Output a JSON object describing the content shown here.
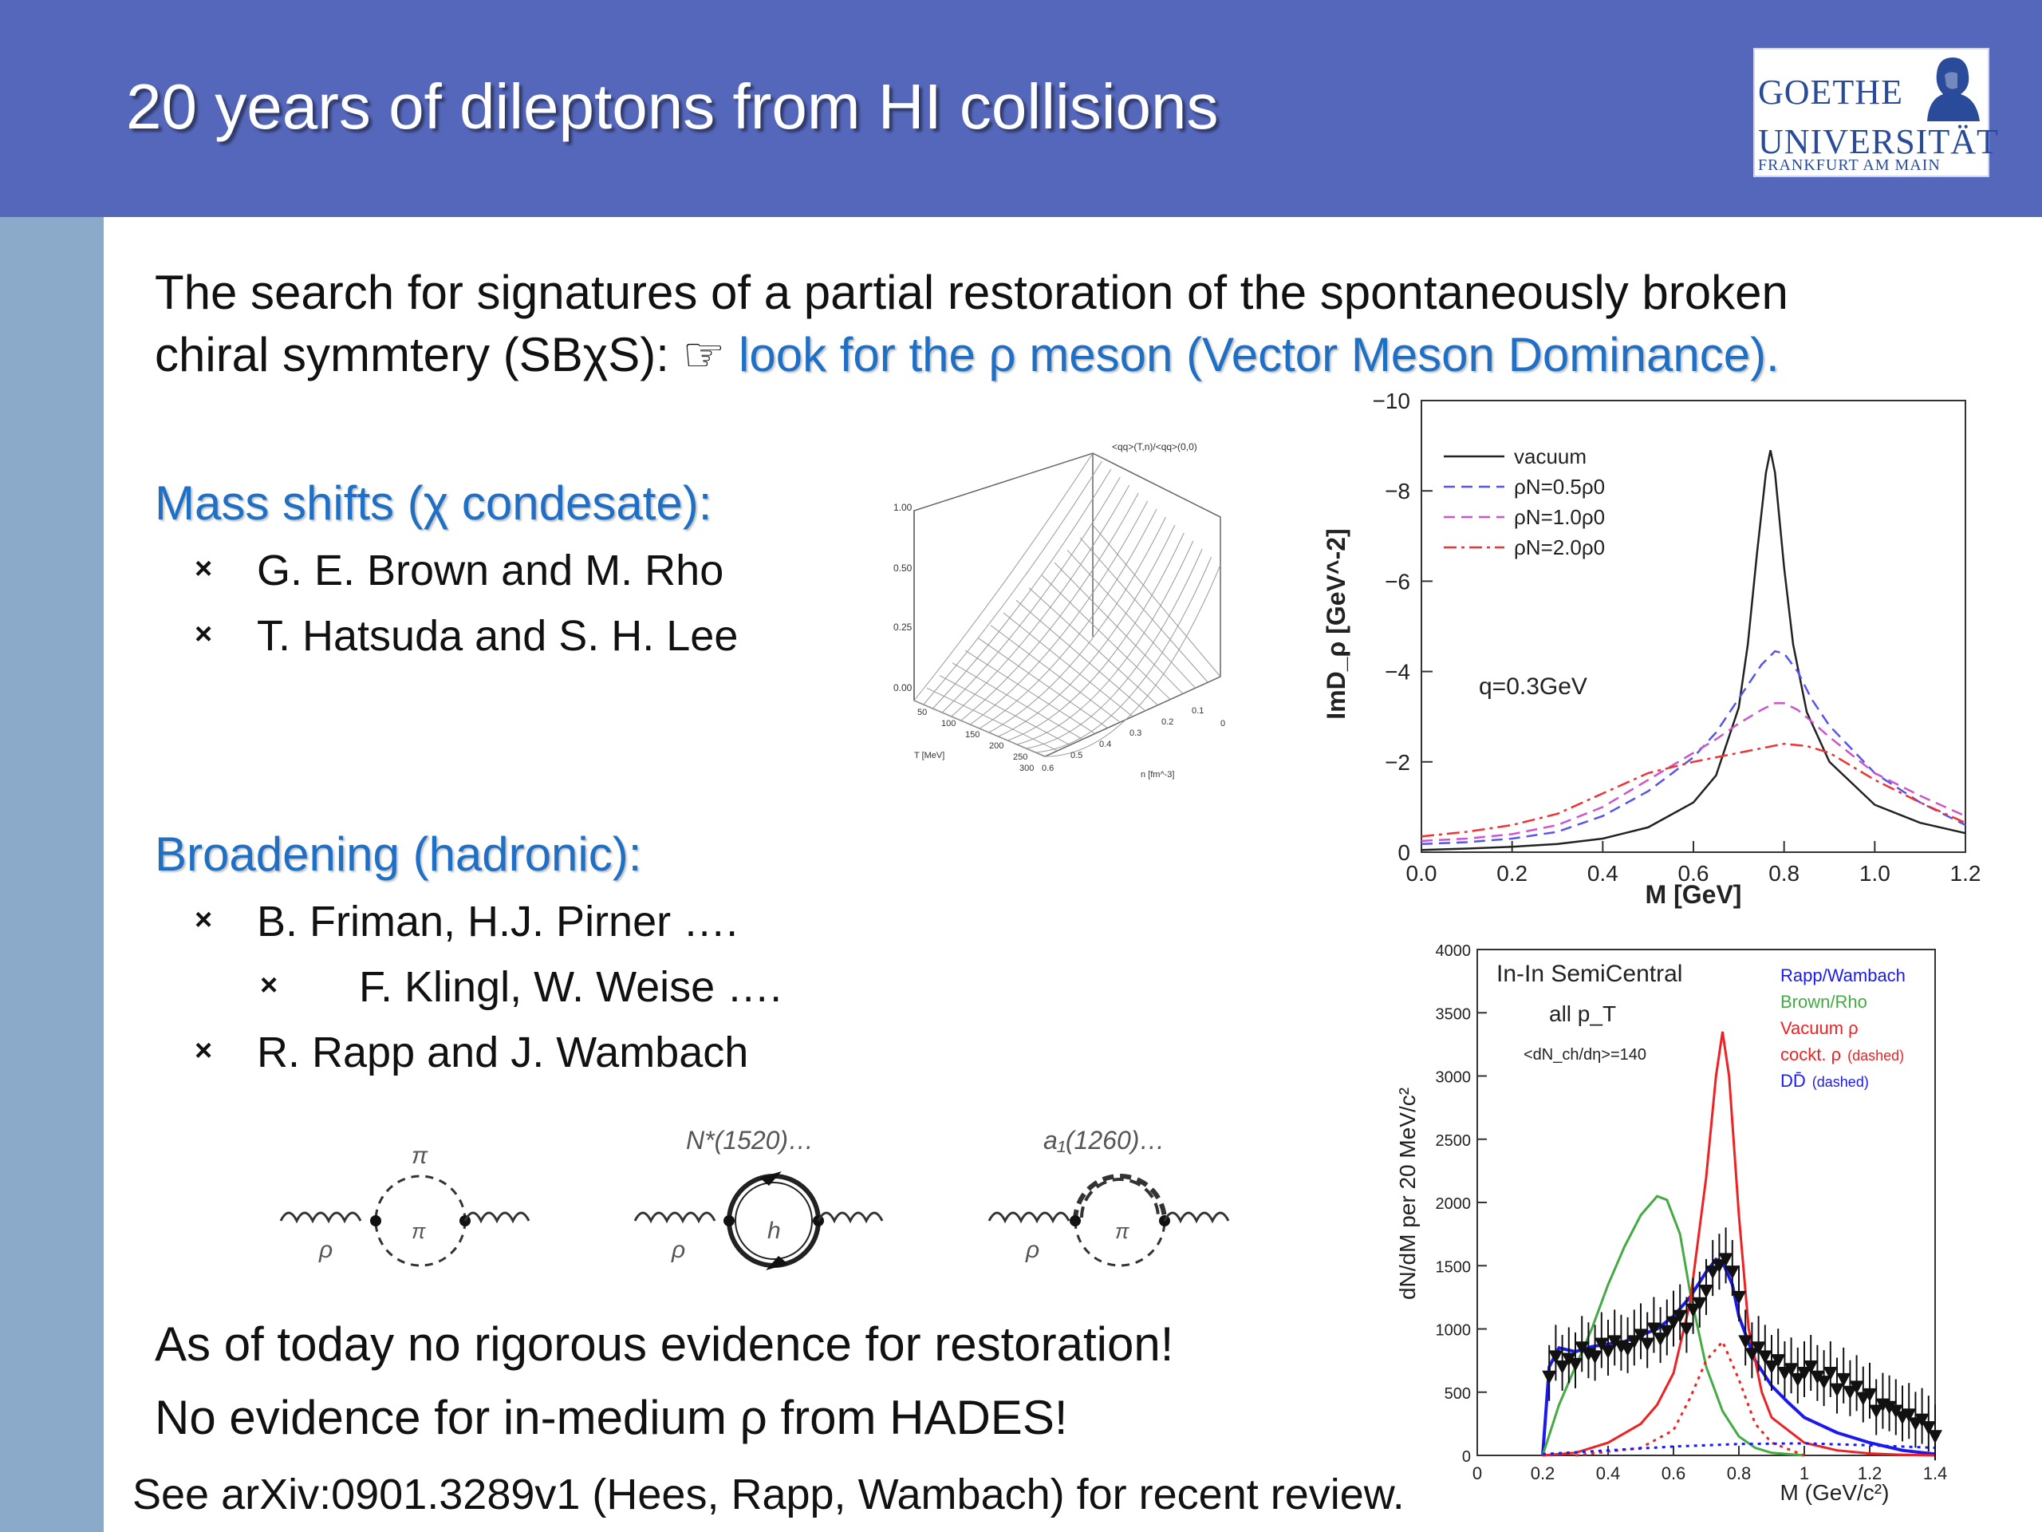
{
  "slide": {
    "title": "20 years of dileptons from HI collisions",
    "logo": {
      "line1": "GOETHE",
      "line2": "UNIVERSITÄT",
      "line3": "FRANKFURT AM MAIN"
    },
    "intro_line1": "The search for signatures of a partial restoration of the spontaneously broken",
    "intro_line2_prefix": "chiral symmtery (SBχS): ☞",
    "intro_line2_highlight": "look for the ρ meson (Vector Meson Dominance).",
    "mass_shifts_heading": "Mass shifts (χ condesate):",
    "mass_shifts_items": [
      "G. E. Brown and M. Rho",
      "T. Hatsuda and S. H. Lee"
    ],
    "broadening_heading": "Broadening (hadronic):",
    "broadening_items": [
      "B. Friman, H.J. Pirner  ….",
      "F. Klingl, W. Weise ….",
      "R. Rapp and J. Wambach"
    ],
    "bullet_symbol": "×",
    "conclusion1": "As of today no rigorous evidence for restoration!",
    "conclusion2": "No evidence for in-medium ρ from HADES!",
    "footer": "See  arXiv:0901.3289v1 (Hees, Rapp, Wambach) for recent review.",
    "feynman_labels": {
      "d1_top": "π",
      "d1_bottom": "π",
      "d1_rho": "ρ",
      "d2_top": "N*(1520)…",
      "d2_inner": "h",
      "d2_rho": "ρ",
      "d3_top": "a₁(1260)…",
      "d3_bottom": "π",
      "d3_rho": "ρ"
    },
    "surface_plot": {
      "title": "<qq>(T,n)/<qq>(0,0)",
      "z_ticks": [
        "1.00",
        "0.50",
        "0.25",
        "0.00"
      ],
      "t_ticks": [
        "50",
        "100",
        "150",
        "200",
        "250",
        "300"
      ],
      "t_label": "T [MeV]",
      "n_ticks": [
        "0.6",
        "0.5",
        "0.4",
        "0.3",
        "0.2",
        "0.1",
        "0"
      ],
      "n_label": "n [fm^-3]"
    }
  },
  "chart_data": [
    {
      "type": "line",
      "ylabel": "ImD_ρ [GeV^-2]",
      "xlabel": "M [GeV]",
      "xlim": [
        0.0,
        1.2
      ],
      "ylim": [
        0,
        -10
      ],
      "x_ticks": [
        "0.0",
        "0.2",
        "0.4",
        "0.6",
        "0.8",
        "1.0",
        "1.2"
      ],
      "y_ticks": [
        "0",
        "−2",
        "−4",
        "−6",
        "−8",
        "−10"
      ],
      "annotation": "q=0.3GeV",
      "legend_position": "top-left",
      "series": [
        {
          "name": "vacuum",
          "color": "#222222",
          "dash": "solid",
          "x": [
            0.0,
            0.1,
            0.2,
            0.3,
            0.4,
            0.5,
            0.6,
            0.65,
            0.7,
            0.72,
            0.74,
            0.76,
            0.77,
            0.78,
            0.8,
            0.82,
            0.85,
            0.9,
            1.0,
            1.1,
            1.2
          ],
          "y": [
            -0.05,
            -0.08,
            -0.12,
            -0.18,
            -0.3,
            -0.55,
            -1.1,
            -1.7,
            -3.2,
            -4.6,
            -6.6,
            -8.4,
            -8.9,
            -8.4,
            -6.3,
            -4.6,
            -3.1,
            -2.0,
            -1.05,
            -0.65,
            -0.42
          ]
        },
        {
          "name": "ρN=0.5ρ0",
          "color": "#5555ee",
          "dash": "dashed",
          "x": [
            0.0,
            0.1,
            0.2,
            0.3,
            0.4,
            0.5,
            0.6,
            0.65,
            0.7,
            0.75,
            0.78,
            0.8,
            0.83,
            0.86,
            0.9,
            1.0,
            1.1,
            1.2
          ],
          "y": [
            -0.18,
            -0.22,
            -0.3,
            -0.45,
            -0.8,
            -1.35,
            -2.1,
            -2.65,
            -3.4,
            -4.15,
            -4.45,
            -4.4,
            -4.0,
            -3.4,
            -2.8,
            -1.75,
            -1.1,
            -0.6
          ]
        },
        {
          "name": "ρN=1.0ρ0",
          "color": "#cc55cc",
          "dash": "dashed",
          "x": [
            0.0,
            0.1,
            0.2,
            0.3,
            0.4,
            0.5,
            0.6,
            0.65,
            0.7,
            0.75,
            0.78,
            0.8,
            0.83,
            0.86,
            0.9,
            1.0,
            1.1,
            1.2
          ],
          "y": [
            -0.25,
            -0.3,
            -0.4,
            -0.6,
            -1.0,
            -1.6,
            -2.2,
            -2.5,
            -2.85,
            -3.15,
            -3.3,
            -3.3,
            -3.15,
            -2.9,
            -2.55,
            -1.75,
            -1.25,
            -0.8
          ]
        },
        {
          "name": "ρN=2.0ρ0",
          "color": "#ee3333",
          "dash": "dashdot",
          "x": [
            0.0,
            0.1,
            0.2,
            0.3,
            0.4,
            0.5,
            0.6,
            0.7,
            0.75,
            0.8,
            0.85,
            0.9,
            1.0,
            1.1,
            1.2
          ],
          "y": [
            -0.35,
            -0.45,
            -0.6,
            -0.85,
            -1.3,
            -1.75,
            -2.0,
            -2.2,
            -2.3,
            -2.4,
            -2.35,
            -2.2,
            -1.6,
            -1.1,
            -0.65
          ]
        }
      ]
    },
    {
      "type": "line",
      "ylabel": "dN/dM per 20 MeV/c²",
      "xlabel": "M (GeV/c²)",
      "xlim": [
        0,
        1.4
      ],
      "ylim": [
        0,
        4000
      ],
      "x_ticks": [
        "0",
        "0.2",
        "0.4",
        "0.6",
        "0.8",
        "1",
        "1.2",
        "1.4"
      ],
      "y_ticks": [
        "0",
        "500",
        "1000",
        "1500",
        "2000",
        "2500",
        "3000",
        "3500",
        "4000"
      ],
      "annotations": [
        "In-In SemiCentral",
        "all p_T",
        "<dN_ch/dη>=140"
      ],
      "legend_position": "top-right",
      "legend": [
        {
          "name": "Rapp/Wambach",
          "color": "#1a1aee"
        },
        {
          "name": "Brown/Rho",
          "color": "#44aa44"
        },
        {
          "name": "Vacuum ρ",
          "color": "#ee2222"
        },
        {
          "name": "cockt. ρ",
          "suffix": "(dashed)",
          "color": "#ee2222"
        },
        {
          "name": "DD̄",
          "suffix": "(dashed)",
          "color": "#1a1aee"
        }
      ],
      "series": [
        {
          "name": "Rapp/Wambach",
          "color": "#1a1aee",
          "dash": "solid",
          "x": [
            0.2,
            0.22,
            0.25,
            0.3,
            0.35,
            0.4,
            0.45,
            0.5,
            0.55,
            0.6,
            0.65,
            0.7,
            0.73,
            0.75,
            0.78,
            0.8,
            0.85,
            0.9,
            0.95,
            1.0,
            1.1,
            1.2,
            1.3,
            1.4
          ],
          "y": [
            0,
            700,
            850,
            820,
            860,
            880,
            900,
            950,
            1000,
            1100,
            1250,
            1450,
            1550,
            1530,
            1350,
            1100,
            750,
            550,
            420,
            300,
            180,
            100,
            40,
            10
          ]
        },
        {
          "name": "Brown/Rho",
          "color": "#44aa44",
          "dash": "solid",
          "x": [
            0.2,
            0.25,
            0.3,
            0.35,
            0.4,
            0.45,
            0.5,
            0.55,
            0.58,
            0.62,
            0.65,
            0.7,
            0.75,
            0.8,
            0.85,
            0.9,
            1.0
          ],
          "y": [
            0,
            400,
            700,
            1000,
            1350,
            1650,
            1900,
            2050,
            2020,
            1750,
            1300,
            700,
            350,
            150,
            60,
            20,
            0
          ]
        },
        {
          "name": "Vacuum ρ",
          "color": "#ee2222",
          "dash": "solid",
          "x": [
            0.2,
            0.3,
            0.4,
            0.5,
            0.55,
            0.6,
            0.65,
            0.7,
            0.73,
            0.75,
            0.77,
            0.8,
            0.83,
            0.87,
            0.9,
            1.0,
            1.1,
            1.2,
            1.3,
            1.4
          ],
          "y": [
            0,
            20,
            100,
            250,
            400,
            650,
            1200,
            2200,
            3000,
            3350,
            3000,
            1900,
            1000,
            500,
            300,
            100,
            40,
            15,
            5,
            0
          ]
        },
        {
          "name": "cockt. ρ",
          "color": "#ee2222",
          "dash": "dotted",
          "x": [
            0.3,
            0.5,
            0.6,
            0.65,
            0.7,
            0.75,
            0.8,
            0.85,
            0.9,
            1.0
          ],
          "y": [
            0,
            60,
            200,
            450,
            750,
            900,
            600,
            250,
            100,
            0
          ]
        },
        {
          "name": "DD̄",
          "color": "#1a1aee",
          "dash": "dotted",
          "x": [
            0.2,
            0.4,
            0.6,
            0.8,
            1.0,
            1.2,
            1.4
          ],
          "y": [
            10,
            40,
            70,
            90,
            95,
            80,
            60
          ]
        },
        {
          "name": "data",
          "color": "#111111",
          "dash": "none",
          "marker": "triangle-down",
          "x": [
            0.22,
            0.24,
            0.26,
            0.28,
            0.3,
            0.32,
            0.34,
            0.36,
            0.38,
            0.4,
            0.42,
            0.44,
            0.46,
            0.48,
            0.5,
            0.52,
            0.54,
            0.56,
            0.58,
            0.6,
            0.62,
            0.64,
            0.66,
            0.68,
            0.7,
            0.72,
            0.74,
            0.76,
            0.78,
            0.8,
            0.82,
            0.84,
            0.86,
            0.88,
            0.9,
            0.92,
            0.94,
            0.96,
            0.98,
            1.0,
            1.02,
            1.04,
            1.06,
            1.08,
            1.1,
            1.12,
            1.14,
            1.16,
            1.18,
            1.2,
            1.22,
            1.24,
            1.26,
            1.28,
            1.3,
            1.32,
            1.34,
            1.36,
            1.38,
            1.4
          ],
          "y": [
            620,
            780,
            700,
            760,
            720,
            850,
            800,
            780,
            880,
            820,
            900,
            860,
            840,
            900,
            950,
            880,
            1000,
            920,
            980,
            1050,
            1100,
            1000,
            1150,
            1200,
            1300,
            1450,
            1500,
            1550,
            1450,
            1250,
            900,
            800,
            850,
            780,
            700,
            750,
            650,
            680,
            600,
            650,
            700,
            620,
            580,
            650,
            520,
            600,
            500,
            540,
            450,
            480,
            350,
            400,
            380,
            350,
            300,
            320,
            250,
            280,
            220,
            150
          ]
        }
      ]
    }
  ]
}
